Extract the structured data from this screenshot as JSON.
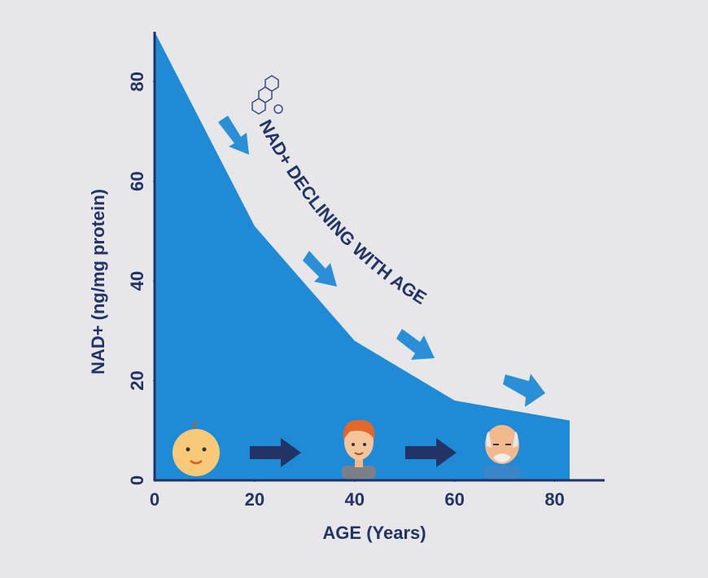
{
  "chart_data": {
    "type": "area",
    "annotation": "NAD+ DECLINING WITH AGE",
    "x_label": "AGE (Years)",
    "y_label": "NAD+ (ng/mg protein)",
    "x": [
      0,
      20,
      40,
      60,
      83
    ],
    "values": [
      90,
      51,
      28,
      16,
      12
    ],
    "color": "#1f8bd6",
    "xlim": [
      0,
      90
    ],
    "ylim": [
      0,
      90
    ],
    "xticks": [
      0,
      20,
      40,
      60,
      80
    ],
    "yticks": [
      0,
      20,
      40,
      60,
      80
    ],
    "grid": false
  }
}
